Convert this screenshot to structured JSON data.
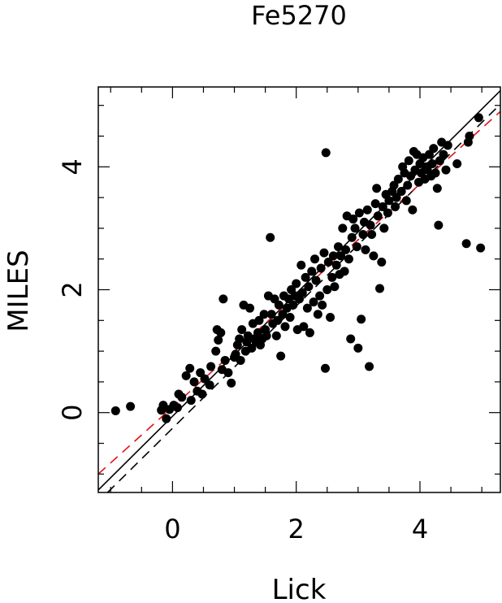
{
  "chart_data": {
    "type": "scatter",
    "title": "Fe5270",
    "xlabel": "Lick",
    "ylabel": "MILES",
    "xlim": [
      -1.2,
      5.3
    ],
    "ylim": [
      -1.3,
      5.3
    ],
    "x_ticks": [
      0,
      2,
      4
    ],
    "y_ticks": [
      0,
      2,
      4
    ],
    "x_tick_labels": [
      "0",
      "2",
      "4"
    ],
    "y_tick_labels": [
      "0",
      "2",
      "4"
    ],
    "grid": false,
    "colors": {
      "points": "#000000",
      "identity": "#000000",
      "fit": "#e0141c"
    },
    "lines": [
      {
        "style": "solid",
        "color": "#000000",
        "x": [
          -1.2,
          5.3
        ],
        "y": [
          -1.26,
          5.24
        ]
      },
      {
        "style": "dashed",
        "color": "#000000",
        "x": [
          -1.05,
          5.3
        ],
        "y": [
          -1.3,
          5.02
        ]
      },
      {
        "style": "dashed",
        "color": "#e0141c",
        "x": [
          -1.2,
          5.3
        ],
        "y": [
          -1.0,
          4.9
        ]
      }
    ],
    "points": [
      [
        -0.92,
        0.03
      ],
      [
        -0.68,
        0.1
      ],
      [
        -0.15,
        0.12
      ],
      [
        -0.18,
        0.04
      ],
      [
        -0.1,
        -0.1
      ],
      [
        -0.05,
        0.05
      ],
      [
        0.02,
        0.12
      ],
      [
        0.08,
        0.08
      ],
      [
        0.1,
        0.3
      ],
      [
        0.15,
        0.25
      ],
      [
        0.22,
        0.6
      ],
      [
        0.28,
        0.72
      ],
      [
        0.3,
        0.2
      ],
      [
        0.35,
        0.5
      ],
      [
        0.4,
        0.35
      ],
      [
        0.45,
        0.65
      ],
      [
        0.48,
        0.3
      ],
      [
        0.52,
        0.55
      ],
      [
        0.6,
        0.45
      ],
      [
        0.62,
        0.75
      ],
      [
        0.7,
        1.0
      ],
      [
        0.72,
        1.35
      ],
      [
        0.74,
        1.18
      ],
      [
        0.78,
        1.3
      ],
      [
        0.8,
        0.7
      ],
      [
        0.82,
        1.85
      ],
      [
        0.85,
        0.85
      ],
      [
        0.9,
        0.65
      ],
      [
        0.95,
        0.48
      ],
      [
        1.0,
        0.9
      ],
      [
        1.02,
        0.95
      ],
      [
        1.05,
        1.1
      ],
      [
        1.08,
        1.2
      ],
      [
        1.1,
        0.85
      ],
      [
        1.12,
        1.35
      ],
      [
        1.15,
        1.75
      ],
      [
        1.18,
        1.0
      ],
      [
        1.2,
        1.15
      ],
      [
        1.22,
        1.25
      ],
      [
        1.25,
        1.7
      ],
      [
        1.28,
        1.05
      ],
      [
        1.3,
        1.45
      ],
      [
        1.32,
        1.2
      ],
      [
        1.35,
        1.15
      ],
      [
        1.38,
        1.3
      ],
      [
        1.4,
        1.5
      ],
      [
        1.42,
        1.1
      ],
      [
        1.45,
        1.2
      ],
      [
        1.48,
        1.6
      ],
      [
        1.5,
        1.35
      ],
      [
        1.52,
        1.25
      ],
      [
        1.55,
        1.9
      ],
      [
        1.58,
        2.85
      ],
      [
        1.6,
        1.6
      ],
      [
        1.62,
        1.45
      ],
      [
        1.65,
        1.85
      ],
      [
        1.68,
        1.25
      ],
      [
        1.7,
        1.5
      ],
      [
        1.72,
        1.75
      ],
      [
        1.75,
        0.92
      ],
      [
        1.78,
        1.6
      ],
      [
        1.8,
        1.9
      ],
      [
        1.82,
        1.4
      ],
      [
        1.85,
        1.7
      ],
      [
        1.88,
        1.85
      ],
      [
        1.9,
        1.55
      ],
      [
        1.92,
        2.0
      ],
      [
        1.95,
        1.75
      ],
      [
        1.98,
        1.9
      ],
      [
        2.0,
        2.1
      ],
      [
        2.02,
        1.35
      ],
      [
        2.05,
        1.85
      ],
      [
        2.08,
        2.4
      ],
      [
        2.1,
        1.95
      ],
      [
        2.12,
        1.4
      ],
      [
        2.15,
        2.2
      ],
      [
        2.18,
        1.7
      ],
      [
        2.2,
        2.05
      ],
      [
        2.22,
        1.3
      ],
      [
        2.25,
        2.3
      ],
      [
        2.28,
        1.8
      ],
      [
        2.3,
        2.5
      ],
      [
        2.32,
        2.15
      ],
      [
        2.35,
        1.6
      ],
      [
        2.38,
        1.9
      ],
      [
        2.4,
        2.35
      ],
      [
        2.42,
        1.75
      ],
      [
        2.45,
        2.6
      ],
      [
        2.47,
        0.72
      ],
      [
        2.48,
        4.23
      ],
      [
        2.5,
        2.0
      ],
      [
        2.52,
        2.45
      ],
      [
        2.55,
        1.55
      ],
      [
        2.58,
        2.2
      ],
      [
        2.6,
        2.55
      ],
      [
        2.62,
        2.05
      ],
      [
        2.65,
        2.4
      ],
      [
        2.68,
        2.7
      ],
      [
        2.7,
        2.25
      ],
      [
        2.72,
        2.55
      ],
      [
        2.75,
        3.0
      ],
      [
        2.78,
        2.3
      ],
      [
        2.8,
        2.65
      ],
      [
        2.82,
        3.2
      ],
      [
        2.85,
        2.5
      ],
      [
        2.88,
        1.2
      ],
      [
        2.9,
        2.85
      ],
      [
        2.92,
        3.15
      ],
      [
        2.95,
        3.0
      ],
      [
        2.98,
        2.7
      ],
      [
        3.0,
        1.05
      ],
      [
        3.02,
        3.25
      ],
      [
        3.05,
        1.52
      ],
      [
        3.08,
        2.9
      ],
      [
        3.1,
        3.1
      ],
      [
        3.12,
        2.65
      ],
      [
        3.15,
        3.3
      ],
      [
        3.18,
        0.75
      ],
      [
        3.2,
        3.05
      ],
      [
        3.22,
        2.9
      ],
      [
        3.25,
        2.55
      ],
      [
        3.28,
        3.4
      ],
      [
        3.3,
        3.65
      ],
      [
        3.32,
        3.2
      ],
      [
        3.35,
        2.02
      ],
      [
        3.38,
        2.45
      ],
      [
        3.4,
        3.35
      ],
      [
        3.42,
        3.0
      ],
      [
        3.45,
        3.55
      ],
      [
        3.48,
        3.25
      ],
      [
        3.5,
        3.45
      ],
      [
        3.55,
        3.6
      ],
      [
        3.58,
        3.7
      ],
      [
        3.6,
        3.35
      ],
      [
        3.62,
        3.5
      ],
      [
        3.65,
        3.8
      ],
      [
        3.7,
        3.6
      ],
      [
        3.72,
        4.0
      ],
      [
        3.75,
        3.9
      ],
      [
        3.78,
        3.45
      ],
      [
        3.8,
        3.7
      ],
      [
        3.82,
        4.1
      ],
      [
        3.85,
        3.85
      ],
      [
        3.88,
        3.3
      ],
      [
        3.9,
        4.25
      ],
      [
        3.92,
        3.95
      ],
      [
        3.95,
        4.2
      ],
      [
        3.98,
        3.75
      ],
      [
        4.0,
        4.05
      ],
      [
        4.02,
        3.9
      ],
      [
        4.05,
        4.15
      ],
      [
        4.08,
        3.8
      ],
      [
        4.1,
        4.0
      ],
      [
        4.12,
        3.95
      ],
      [
        4.15,
        4.2
      ],
      [
        4.18,
        3.85
      ],
      [
        4.2,
        4.05
      ],
      [
        4.22,
        4.3
      ],
      [
        4.25,
        3.9
      ],
      [
        4.28,
        3.65
      ],
      [
        4.3,
        3.05
      ],
      [
        4.32,
        4.1
      ],
      [
        4.35,
        4.4
      ],
      [
        4.38,
        4.2
      ],
      [
        4.42,
        3.95
      ],
      [
        4.45,
        4.35
      ],
      [
        4.6,
        4.05
      ],
      [
        4.75,
        2.75
      ],
      [
        4.78,
        4.4
      ],
      [
        4.8,
        4.5
      ],
      [
        4.95,
        4.8
      ],
      [
        4.98,
        2.68
      ]
    ]
  }
}
